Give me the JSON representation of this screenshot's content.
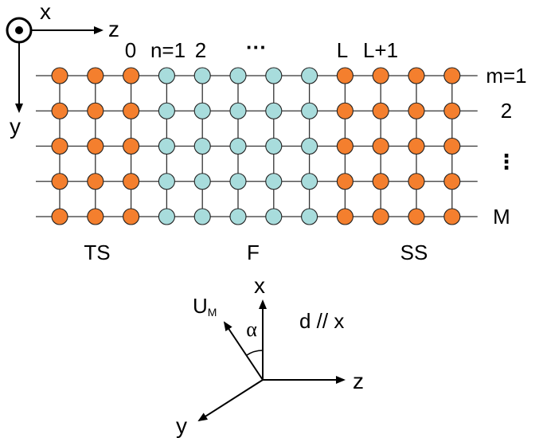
{
  "colors": {
    "superconductor_site": "#F47F2E",
    "ferromagnet_site": "#A8DCDC",
    "site_outline": "#222222",
    "bond": "#333333",
    "axes": "#000000"
  },
  "top_axes": {
    "x_label": "x",
    "z_label": "z",
    "y_label": "y",
    "x_marker_icon": "out-of-page-dot-icon"
  },
  "lattice": {
    "rows": 5,
    "columns": 12,
    "columns_left_superconductor": 3,
    "columns_ferromagnet": 5,
    "columns_right_superconductor": 4
  },
  "column_labels": [
    "0",
    "n=1",
    "2",
    "···",
    "L",
    "L+1"
  ],
  "row_labels": [
    "m=1",
    "2",
    "⋮",
    "M"
  ],
  "region_labels": {
    "left": "TS",
    "middle": "F",
    "right": "SS"
  },
  "bottom_axes": {
    "x_label": "x",
    "z_label": "z",
    "y_label": "y",
    "vector_label": "U",
    "vector_subscript": "M",
    "angle_label": "α",
    "d_label": "d // x"
  }
}
